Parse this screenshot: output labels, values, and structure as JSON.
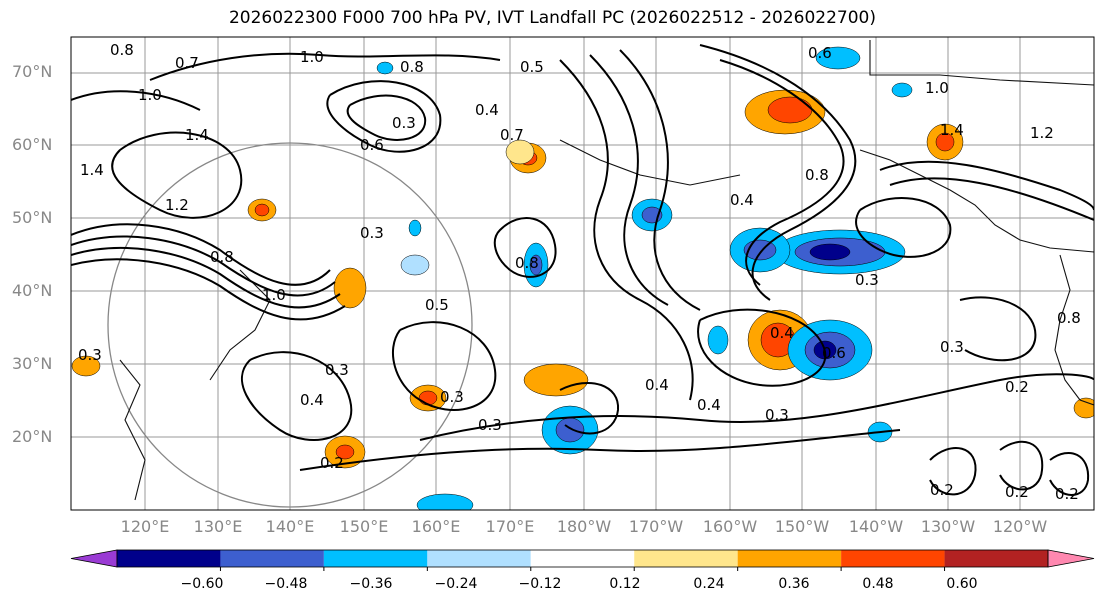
{
  "title": "2026022300 F000 700 hPa PV, IVT Landfall PC (2026022512 - 2026022700)",
  "map": {
    "lat_labels": [
      "70°N",
      "60°N",
      "50°N",
      "40°N",
      "30°N",
      "20°N"
    ],
    "lon_labels": [
      "120°E",
      "130°E",
      "140°E",
      "150°E",
      "160°E",
      "170°E",
      "180°W",
      "170°W",
      "160°W",
      "150°W",
      "140°W",
      "130°W",
      "120°W"
    ],
    "contour_labels": [
      "0.7",
      "1.0",
      "0.8",
      "0.5",
      "0.6",
      "0.8",
      "1.0",
      "1.4",
      "1.4",
      "1.2",
      "0.8",
      "1.0",
      "0.3",
      "0.6",
      "0.7",
      "0.4",
      "0.3",
      "0.8",
      "0.5",
      "0.3",
      "0.3",
      "0.3",
      "0.2",
      "0.4",
      "0.3",
      "0.4",
      "0.3",
      "0.4",
      "0.6",
      "0.4",
      "0.3",
      "0.2",
      "0.2",
      "0.2",
      "0.2",
      "0.3",
      "0.8",
      "0.4",
      "0.8",
      "1.0",
      "1.4",
      "1.2"
    ]
  },
  "colorbar": {
    "ticks": [
      "−0.60",
      "−0.48",
      "−0.36",
      "−0.24",
      "−0.12",
      "0.12",
      "0.24",
      "0.36",
      "0.48",
      "0.60"
    ],
    "colors": [
      "#9a3bd4",
      "#00008b",
      "#3d5fcf",
      "#00bfff",
      "#b0e0ff",
      "#ffffff",
      "#ffe68c",
      "#ffa500",
      "#ff4500",
      "#b22222",
      "#ff88b0"
    ]
  }
}
